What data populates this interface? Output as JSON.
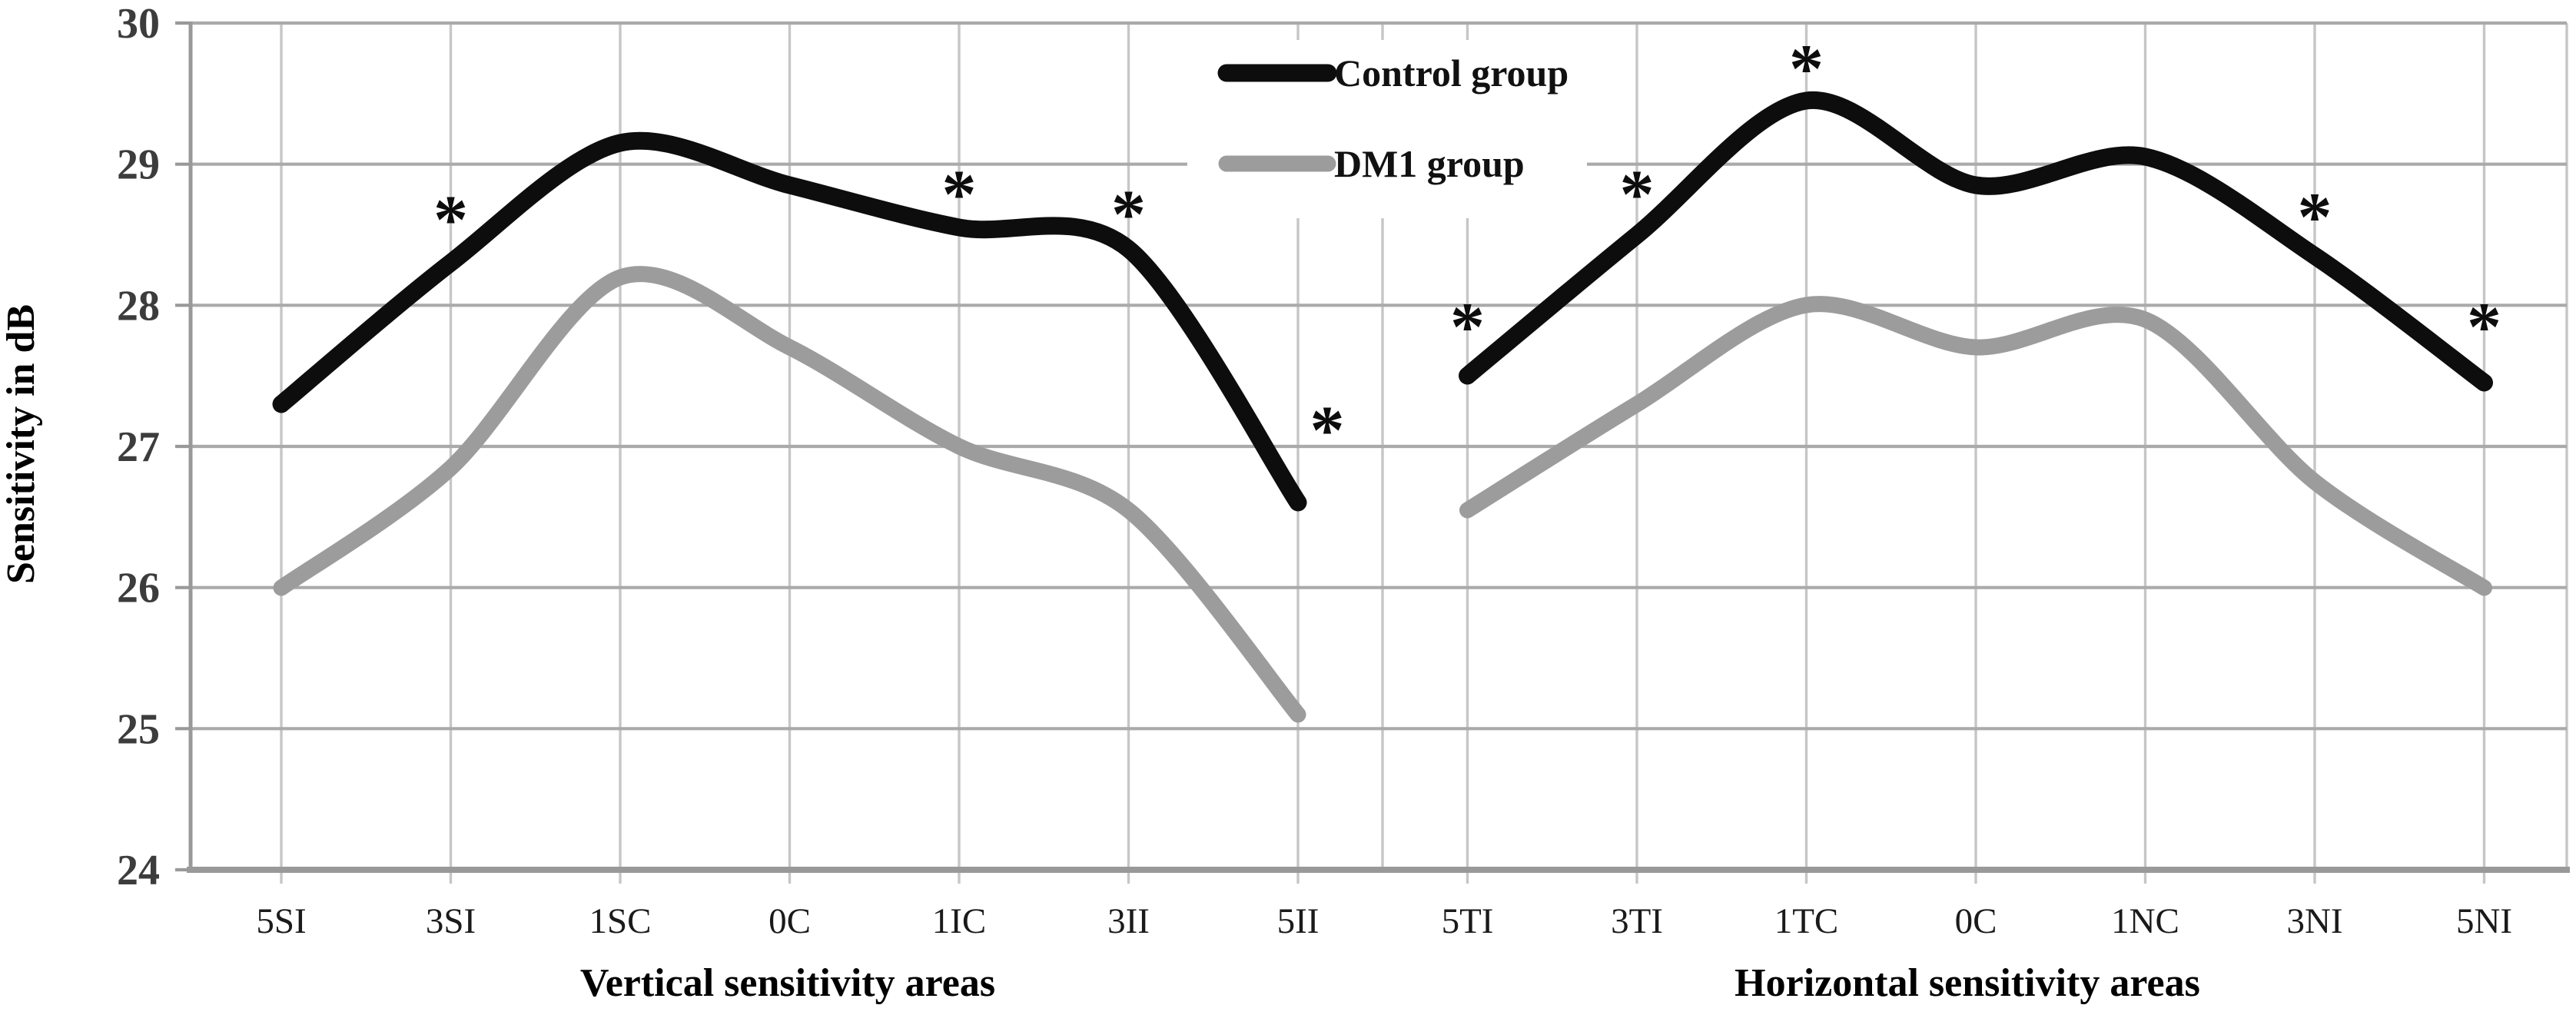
{
  "legend": {
    "items": [
      {
        "label": "Control group",
        "color": "#0d0d0d"
      },
      {
        "label": "DM1 group",
        "color": "#9c9c9c"
      }
    ]
  },
  "chart_data": {
    "type": "line",
    "title": "",
    "ylabel": "Sensitivity in dB",
    "ylim": [
      24,
      30
    ],
    "yticks": [
      24,
      25,
      26,
      27,
      28,
      29,
      30
    ],
    "grid": true,
    "legend_position": "top-center",
    "line_style": "smoothed, thick, round caps",
    "colors": {
      "control": "#0d0d0d",
      "dm1": "#9c9c9c",
      "h_gridline": "#aaaaaa",
      "v_gridline": "#c6c6c6",
      "axis_line": "#999999"
    },
    "panels": [
      {
        "xlabel": "Vertical sensitivity areas",
        "categories": [
          "5SI",
          "3SI",
          "1SC",
          "0C",
          "1IC",
          "3II",
          "5II"
        ],
        "series": [
          {
            "name": "Control group",
            "values": [
              27.3,
              28.3,
              29.15,
              28.85,
              28.55,
              28.4,
              26.6
            ]
          },
          {
            "name": "DM1 group",
            "values": [
              26.0,
              26.85,
              28.2,
              27.7,
              27.0,
              26.55,
              25.1
            ]
          }
        ],
        "significance_markers": [
          {
            "category": "3SI",
            "symbol": "*",
            "y": 28.66,
            "dx": 0
          },
          {
            "category": "1IC",
            "symbol": "*",
            "y": 28.84,
            "dx": 0
          },
          {
            "category": "3II",
            "symbol": "*",
            "y": 28.7,
            "dx": 0
          },
          {
            "category": "5II",
            "symbol": "*",
            "y": 27.17,
            "dx": 38
          }
        ]
      },
      {
        "xlabel": "Horizontal sensitivity areas",
        "categories": [
          "5TI",
          "3TI",
          "1TC",
          "0C",
          "1NC",
          "3NI",
          "5NI"
        ],
        "series": [
          {
            "name": "Control group",
            "values": [
              27.5,
              28.5,
              29.45,
              28.85,
              29.05,
              28.35,
              27.45
            ]
          },
          {
            "name": "DM1 group",
            "values": [
              26.55,
              27.3,
              28.0,
              27.7,
              27.9,
              26.75,
              26.0
            ]
          }
        ],
        "significance_markers": [
          {
            "category": "5TI",
            "symbol": "*",
            "y": 27.9,
            "dx": 0
          },
          {
            "category": "3TI",
            "symbol": "*",
            "y": 28.84,
            "dx": 0
          },
          {
            "category": "1TC",
            "symbol": "*",
            "y": 29.73,
            "dx": 0
          },
          {
            "category": "3NI",
            "symbol": "*",
            "y": 28.68,
            "dx": 0
          },
          {
            "category": "5NI",
            "symbol": "*",
            "y": 27.9,
            "dx": 0
          }
        ]
      }
    ]
  }
}
